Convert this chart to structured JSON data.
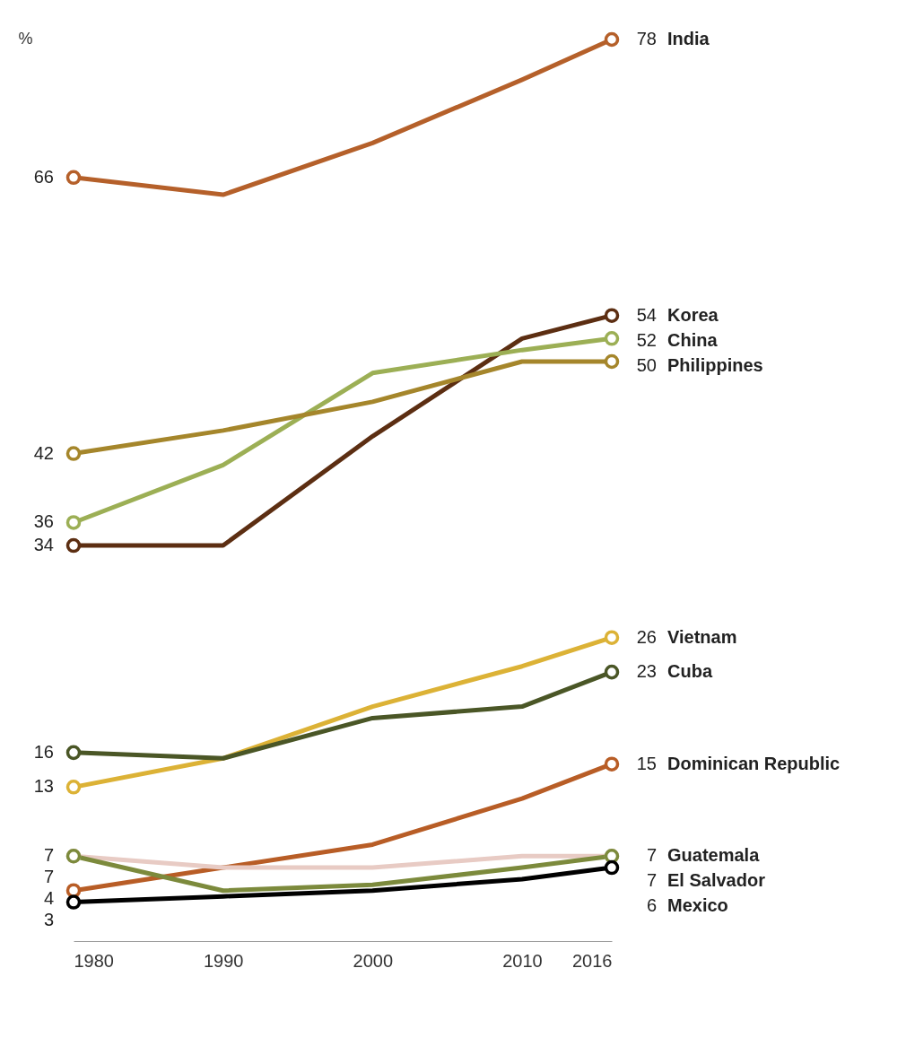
{
  "chart_data": {
    "type": "line",
    "ylabel": "%",
    "x": [
      1980,
      1990,
      2000,
      2010,
      2016
    ],
    "xlim": [
      1980,
      2016
    ],
    "xticks": [
      1980,
      1990,
      2000,
      2010,
      2016
    ],
    "legend": false,
    "grid": false,
    "line_style": "solid",
    "tick_labels": "x",
    "series": [
      {
        "name": "India",
        "color": "#b5602a",
        "values": [
          66,
          64.5,
          69,
          74.5,
          78
        ],
        "value_labels": [
          "66",
          null,
          null,
          null,
          "78"
        ]
      },
      {
        "name": "Korea",
        "color": "#5c2e12",
        "values": [
          34,
          34,
          43.5,
          52,
          54
        ],
        "value_labels": [
          "34",
          null,
          null,
          null,
          "54"
        ]
      },
      {
        "name": "China",
        "color": "#9caf55",
        "values": [
          36,
          41,
          49,
          51,
          52
        ],
        "value_labels": [
          "36",
          null,
          null,
          null,
          "52"
        ]
      },
      {
        "name": "Philippines",
        "color": "#a5862b",
        "values": [
          42,
          44,
          46.5,
          50,
          50
        ],
        "value_labels": [
          "42",
          null,
          null,
          null,
          "50"
        ]
      },
      {
        "name": "Vietnam",
        "color": "#dcb236",
        "values": [
          13,
          15.5,
          20,
          23.5,
          26
        ],
        "value_labels": [
          "13",
          null,
          null,
          null,
          "26"
        ]
      },
      {
        "name": "Cuba",
        "color": "#4a5626",
        "values": [
          16,
          15.5,
          19,
          20,
          23
        ],
        "value_labels": [
          "16",
          null,
          null,
          null,
          "23"
        ]
      },
      {
        "name": "Dominican Republic",
        "color": "#b85d26",
        "values": [
          4,
          6,
          8,
          12,
          15
        ],
        "value_labels": [
          "4",
          null,
          null,
          null,
          "15"
        ]
      },
      {
        "name": "Guatemala",
        "color": "#e8cbc4",
        "values": [
          7,
          6,
          6,
          7,
          7
        ],
        "value_labels": [
          "7",
          null,
          null,
          null,
          "7"
        ]
      },
      {
        "name": "El Salvador",
        "color": "#7c8a3c",
        "values": [
          7,
          4,
          4.5,
          6,
          7
        ],
        "value_labels": [
          "7",
          null,
          null,
          null,
          "7"
        ]
      },
      {
        "name": "Mexico",
        "color": "#000000",
        "values": [
          3,
          3.5,
          4,
          5,
          6
        ],
        "value_labels": [
          "3",
          null,
          null,
          null,
          "6"
        ]
      }
    ]
  }
}
